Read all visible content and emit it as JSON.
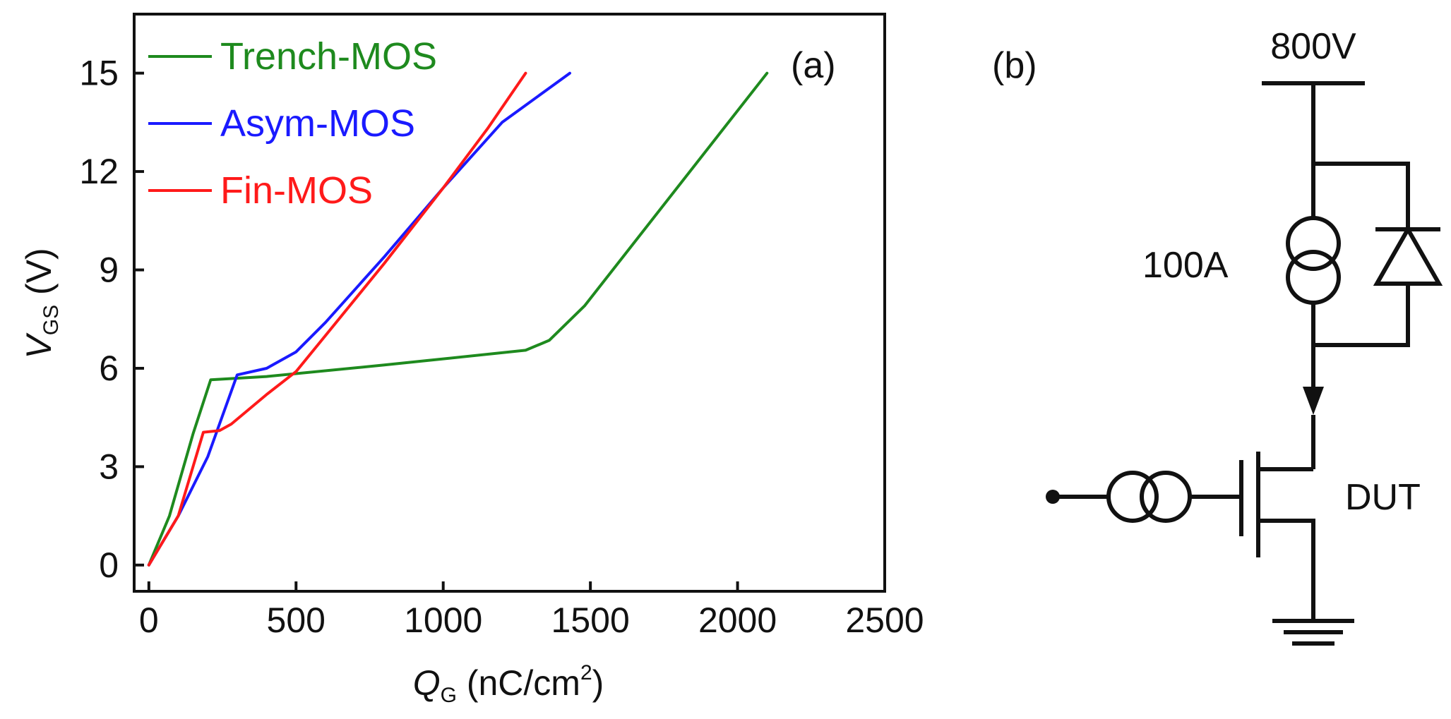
{
  "chart_data": {
    "type": "line",
    "panel_label": "(a)",
    "xlabel": {
      "symbol": "Q",
      "subscript": "G",
      "unit_open": " (nC/cm",
      "superscript": "2",
      "unit_close": ")"
    },
    "ylabel": {
      "symbol": "V",
      "subscript": "GS",
      "unit": " (V)"
    },
    "xlim": [
      -50,
      2500
    ],
    "ylim": [
      -0.8,
      16.8
    ],
    "xticks": [
      0,
      500,
      1000,
      1500,
      2000,
      2500
    ],
    "xtick_labels": [
      "0",
      "500",
      "1000",
      "1500",
      "2000",
      "2500"
    ],
    "yticks": [
      0,
      3,
      6,
      9,
      12,
      15
    ],
    "ytick_labels": [
      "0",
      "3",
      "6",
      "9",
      "12",
      "15"
    ],
    "legend_position": "top-left",
    "series": [
      {
        "name": "Trench-MOS",
        "color": "#1e8a1e",
        "x": [
          0,
          70,
          150,
          210,
          400,
          800,
          1280,
          1360,
          1480,
          2100
        ],
        "y": [
          0,
          1.5,
          4.0,
          5.65,
          5.75,
          6.1,
          6.55,
          6.85,
          7.9,
          15.0
        ]
      },
      {
        "name": "Asym-MOS",
        "color": "#1a1aff",
        "x": [
          0,
          100,
          200,
          300,
          400,
          500,
          600,
          800,
          1000,
          1200,
          1430
        ],
        "y": [
          0,
          1.5,
          3.3,
          5.8,
          6.0,
          6.5,
          7.4,
          9.4,
          11.5,
          13.5,
          15.0
        ]
      },
      {
        "name": "Fin-MOS",
        "color": "#ff1a1a",
        "x": [
          0,
          100,
          185,
          240,
          280,
          400,
          500,
          600,
          800,
          1000,
          1150,
          1280
        ],
        "y": [
          0,
          1.5,
          4.05,
          4.1,
          4.3,
          5.2,
          5.9,
          7.0,
          9.2,
          11.5,
          13.3,
          15.0
        ]
      }
    ]
  },
  "circuit": {
    "panel_label": "(b)",
    "supply_voltage": "800V",
    "current_source_label": "100A",
    "device_label": "DUT"
  }
}
